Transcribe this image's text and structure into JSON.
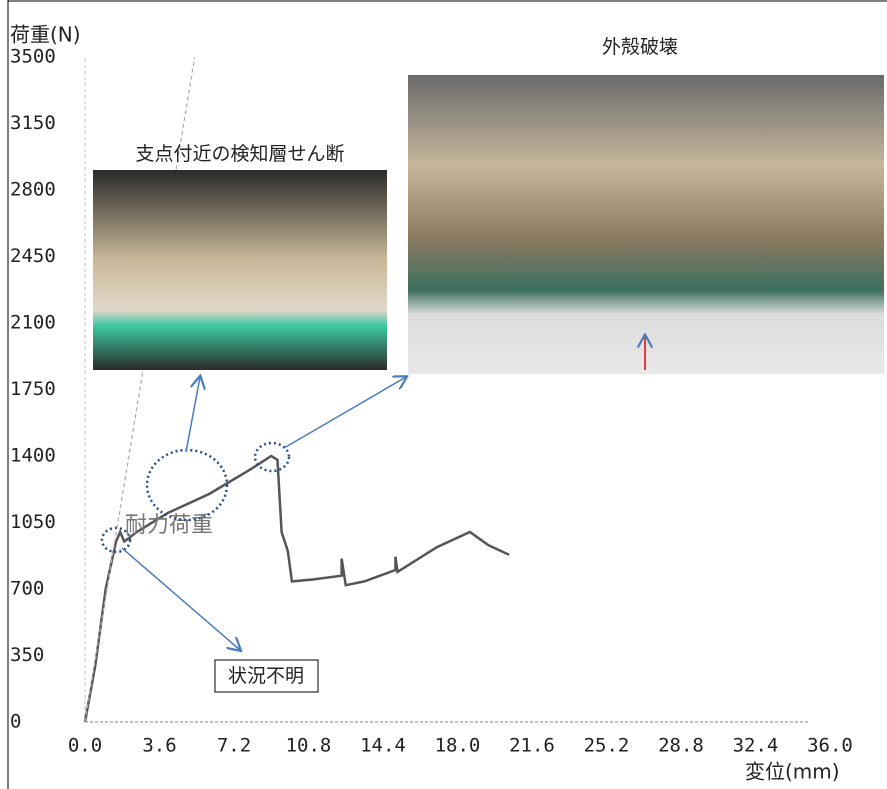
{
  "chart_data": {
    "type": "line",
    "xlabel": "変位(mm)",
    "ylabel": "荷重(N)",
    "xlim": [
      0,
      36
    ],
    "ylim": [
      0,
      3500
    ],
    "xticks": [
      {
        "value": 0,
        "label": "0.0"
      },
      3.6,
      7.2,
      10.8,
      14.4,
      {
        "value": 18,
        "label": "18.0"
      },
      21.6,
      25.2,
      28.8,
      32.4,
      {
        "value": 36,
        "label": "36.0"
      }
    ],
    "yticks": [
      0,
      350,
      700,
      1050,
      1400,
      1750,
      2100,
      2450,
      2800,
      3150,
      3500
    ],
    "series": [
      {
        "color": "#555555",
        "x": [
          0,
          0.5,
          1.0,
          1.5,
          1.7,
          1.9,
          2.5,
          4,
          6,
          8,
          9.0,
          9.3,
          9.5,
          9.8,
          10.0,
          11,
          12.4,
          12.4,
          12.6,
          13.5,
          15.0,
          15.0,
          15.1,
          17.0,
          18.6,
          19.5,
          20.5
        ],
        "values": [
          0,
          300,
          700,
          950,
          1000,
          950,
          1000,
          1100,
          1200,
          1330,
          1400,
          1380,
          1000,
          900,
          740,
          750,
          770,
          860,
          720,
          740,
          800,
          870,
          790,
          920,
          1000,
          930,
          880
        ]
      },
      {
        "color": "#aaaaaa",
        "x": [
          0,
          5.3
        ],
        "values": [
          0,
          3500
        ]
      }
    ],
    "annotations": [
      "耐力荷重",
      "状況不明",
      "支点付近の検知層せん断",
      "外殻破壊"
    ]
  }
}
